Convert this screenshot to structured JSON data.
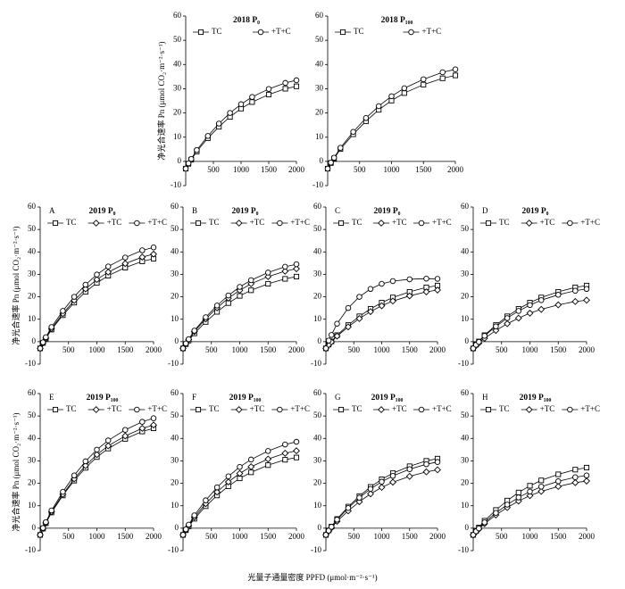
{
  "xlabel": "光量子通量密度 PPFD (μmol·m⁻²·s⁻¹)",
  "chart_data": [
    {
      "type": "line",
      "title": "2018 P₀",
      "ylabel": "净光合速率 Pn (μmol CO₂·m⁻²·s⁻¹)",
      "legend": "top",
      "x": [
        0,
        50,
        100,
        200,
        400,
        600,
        800,
        1000,
        1200,
        1500,
        1800,
        2000
      ],
      "xlim": [
        0,
        2000
      ],
      "ylim": [
        -10,
        60
      ],
      "xticks": [
        500,
        1000,
        1500,
        2000
      ],
      "yticks": [
        -10,
        0,
        10,
        20,
        30,
        40,
        50,
        60
      ],
      "series": [
        {
          "name": "TC",
          "marker": "square",
          "color": "#000000",
          "values": [
            -3,
            -1.0,
            0.7,
            4.1,
            9.6,
            14.3,
            18.4,
            21.8,
            24.5,
            27.6,
            30.0,
            31
          ]
        },
        {
          "name": "+T+C",
          "marker": "circle",
          "color": "#000000",
          "values": [
            -3,
            -0.8,
            1.0,
            4.7,
            10.5,
            15.6,
            20.0,
            23.6,
            26.6,
            29.9,
            32.4,
            33.5
          ]
        }
      ]
    },
    {
      "type": "line",
      "title": "2018 P₁₀₀",
      "legend": "top",
      "x": [
        0,
        50,
        100,
        200,
        400,
        600,
        800,
        1000,
        1200,
        1500,
        1800,
        2000
      ],
      "xlim": [
        0,
        2000
      ],
      "ylim": [
        -10,
        60
      ],
      "xticks": [
        500,
        1000,
        1500,
        2000
      ],
      "yticks": [
        -10,
        0,
        10,
        20,
        30,
        40,
        50,
        60
      ],
      "series": [
        {
          "name": "TC",
          "marker": "square",
          "color": "#000000",
          "values": [
            -3,
            -0.7,
            1.2,
            5.1,
            11.2,
            16.6,
            21.3,
            25.1,
            28.2,
            31.7,
            34.3,
            35.5
          ]
        },
        {
          "name": "+T+C",
          "marker": "circle",
          "color": "#000000",
          "values": [
            -3,
            -0.5,
            1.5,
            5.6,
            12.2,
            17.9,
            22.8,
            26.9,
            30.2,
            33.9,
            36.8,
            38
          ]
        }
      ]
    },
    {
      "type": "line",
      "label": "A",
      "title": "2019 P₀",
      "ylabel": "净光合速率 Pn (μmol CO₂·m⁻²·s⁻¹)",
      "legend": "top",
      "x": [
        0,
        50,
        100,
        200,
        400,
        600,
        800,
        1000,
        1200,
        1500,
        1800,
        2000
      ],
      "xlim": [
        0,
        2000
      ],
      "ylim": [
        -10,
        60
      ],
      "xticks": [
        500,
        1000,
        1500,
        2000
      ],
      "yticks": [
        -10,
        0,
        10,
        20,
        30,
        40,
        50,
        60
      ],
      "series": [
        {
          "name": "TC",
          "marker": "square",
          "color": "#000000",
          "values": [
            -3,
            -0.6,
            1.4,
            5.4,
            11.8,
            17.4,
            22.2,
            26.2,
            29.4,
            33.0,
            35.8,
            37
          ]
        },
        {
          "name": "+TC",
          "marker": "diamond",
          "color": "#000000",
          "values": [
            -3,
            -0.5,
            1.6,
            5.8,
            12.5,
            18.4,
            23.5,
            27.7,
            31.0,
            34.8,
            37.7,
            39
          ]
        },
        {
          "name": "+T+C",
          "marker": "circle",
          "color": "#000000",
          "values": [
            -3,
            -0.3,
            2.0,
            6.5,
            13.7,
            20.0,
            25.4,
            29.9,
            33.5,
            37.5,
            40.7,
            42
          ]
        }
      ]
    },
    {
      "type": "line",
      "label": "B",
      "title": "2019 P₀",
      "legend": "top",
      "x": [
        0,
        50,
        100,
        200,
        400,
        600,
        800,
        1000,
        1200,
        1500,
        1800,
        2000
      ],
      "xlim": [
        0,
        2000
      ],
      "ylim": [
        -10,
        60
      ],
      "xticks": [
        500,
        1000,
        1500,
        2000
      ],
      "yticks": [
        -10,
        0,
        10,
        20,
        30,
        40,
        50,
        60
      ],
      "series": [
        {
          "name": "TC",
          "marker": "square",
          "color": "#000000",
          "values": [
            -3,
            -1.1,
            0.5,
            3.7,
            8.8,
            13.3,
            17.2,
            20.4,
            22.9,
            25.8,
            28.0,
            29
          ]
        },
        {
          "name": "+TC",
          "marker": "diamond",
          "color": "#000000",
          "values": [
            -3,
            -0.9,
            0.9,
            4.5,
            10.1,
            15.1,
            19.4,
            22.9,
            25.8,
            29.0,
            31.4,
            32.5
          ]
        },
        {
          "name": "+T+C",
          "marker": "circle",
          "color": "#000000",
          "values": [
            -3,
            -0.8,
            1.1,
            4.9,
            10.9,
            16.1,
            20.6,
            24.4,
            27.4,
            30.8,
            33.4,
            34.5
          ]
        }
      ]
    },
    {
      "type": "line",
      "label": "C",
      "title": "2019 P₀",
      "legend": "top",
      "x": [
        0,
        50,
        100,
        200,
        400,
        600,
        800,
        1000,
        1200,
        1500,
        1800,
        2000
      ],
      "xlim": [
        0,
        2000
      ],
      "ylim": [
        -10,
        60
      ],
      "xticks": [
        500,
        1000,
        1500,
        2000
      ],
      "yticks": [
        -10,
        0,
        10,
        20,
        30,
        40,
        50,
        60
      ],
      "series": [
        {
          "name": "TC",
          "marker": "square",
          "color": "#000000",
          "values": [
            -3,
            -1.3,
            0.1,
            2.9,
            7.4,
            11.3,
            14.6,
            17.4,
            19.7,
            22.2,
            24.2,
            25
          ]
        },
        {
          "name": "+TC",
          "marker": "diamond",
          "color": "#000000",
          "values": [
            -3,
            -1.4,
            -0.1,
            2.5,
            6.6,
            10.3,
            13.4,
            16.0,
            18.1,
            20.4,
            22.2,
            23
          ]
        },
        {
          "name": "+T+C",
          "marker": "circle",
          "color": "#000000",
          "values": [
            -3,
            0.5,
            3.0,
            8.0,
            15.0,
            20.0,
            23.5,
            25.8,
            27.0,
            27.8,
            28.1,
            28
          ]
        }
      ]
    },
    {
      "type": "line",
      "label": "D",
      "title": "2019 P₀",
      "legend": "top",
      "x": [
        0,
        50,
        100,
        200,
        400,
        600,
        800,
        1000,
        1200,
        1500,
        1800,
        2000
      ],
      "xlim": [
        0,
        2000
      ],
      "ylim": [
        -10,
        60
      ],
      "xticks": [
        500,
        1000,
        1500,
        2000
      ],
      "yticks": [
        -10,
        0,
        10,
        20,
        30,
        40,
        50,
        60
      ],
      "series": [
        {
          "name": "TC",
          "marker": "square",
          "color": "#000000",
          "values": [
            -3,
            -1.3,
            0.1,
            2.9,
            7.4,
            11.3,
            14.6,
            17.4,
            19.7,
            22.2,
            24.2,
            25
          ]
        },
        {
          "name": "+TC",
          "marker": "diamond",
          "color": "#000000",
          "values": [
            -3,
            -1.7,
            -0.6,
            1.5,
            5.0,
            8.0,
            10.5,
            12.7,
            14.4,
            16.4,
            17.9,
            18.5
          ]
        },
        {
          "name": "+T+C",
          "marker": "circle",
          "color": "#000000",
          "values": [
            -3,
            -1.4,
            -0.1,
            2.6,
            6.8,
            10.5,
            13.7,
            16.3,
            18.5,
            20.9,
            22.7,
            23.5
          ]
        }
      ]
    },
    {
      "type": "line",
      "label": "E",
      "title": "2019 P₁₀₀",
      "ylabel": "净光合速率 Pn (μmol CO₂·m⁻²·s⁻¹)",
      "legend": "top",
      "x": [
        0,
        50,
        100,
        200,
        400,
        600,
        800,
        1000,
        1200,
        1500,
        1800,
        2000
      ],
      "xlim": [
        0,
        2000
      ],
      "ylim": [
        -10,
        60
      ],
      "xticks": [
        500,
        1000,
        1500,
        2000
      ],
      "yticks": [
        -10,
        0,
        10,
        20,
        30,
        40,
        50,
        60
      ],
      "series": [
        {
          "name": "TC",
          "marker": "square",
          "color": "#000000",
          "values": [
            -3,
            -0.2,
            2.2,
            7.0,
            14.6,
            21.2,
            26.9,
            31.7,
            35.5,
            39.8,
            43.1,
            44.5
          ]
        },
        {
          "name": "+TC",
          "marker": "diamond",
          "color": "#000000",
          "values": [
            -3,
            -0.1,
            2.4,
            7.3,
            15.1,
            22.0,
            27.9,
            32.8,
            36.7,
            41.1,
            44.5,
            46
          ]
        },
        {
          "name": "+T+C",
          "marker": "circle",
          "color": "#000000",
          "values": [
            -3,
            0.1,
            2.7,
            7.9,
            16.2,
            23.5,
            29.8,
            35.0,
            39.1,
            43.8,
            47.4,
            49
          ]
        }
      ]
    },
    {
      "type": "line",
      "label": "F",
      "title": "2019 P₁₀₀",
      "legend": "top",
      "x": [
        0,
        50,
        100,
        200,
        400,
        600,
        800,
        1000,
        1200,
        1500,
        1800,
        2000
      ],
      "xlim": [
        0,
        2000
      ],
      "ylim": [
        -10,
        60
      ],
      "xticks": [
        500,
        1000,
        1500,
        2000
      ],
      "yticks": [
        -10,
        0,
        10,
        20,
        30,
        40,
        50,
        60
      ],
      "series": [
        {
          "name": "TC",
          "marker": "square",
          "color": "#000000",
          "values": [
            -3,
            -0.9,
            0.8,
            4.2,
            9.8,
            14.6,
            18.7,
            22.2,
            24.9,
            28.1,
            30.5,
            31.5
          ]
        },
        {
          "name": "+TC",
          "marker": "diamond",
          "color": "#000000",
          "values": [
            -3,
            -0.8,
            1.1,
            4.9,
            10.9,
            16.1,
            20.6,
            24.4,
            27.4,
            30.8,
            33.4,
            34.5
          ]
        },
        {
          "name": "+T+C",
          "marker": "circle",
          "color": "#000000",
          "values": [
            -3,
            -0.5,
            1.6,
            5.7,
            12.4,
            18.2,
            23.1,
            27.3,
            30.6,
            34.4,
            37.3,
            38.5
          ]
        }
      ]
    },
    {
      "type": "line",
      "label": "G",
      "title": "2019 P₁₀₀",
      "legend": "top",
      "x": [
        0,
        50,
        100,
        200,
        400,
        600,
        800,
        1000,
        1200,
        1500,
        1800,
        2000
      ],
      "xlim": [
        0,
        2000
      ],
      "ylim": [
        -10,
        60
      ],
      "xticks": [
        500,
        1000,
        1500,
        2000
      ],
      "yticks": [
        -10,
        0,
        10,
        20,
        30,
        40,
        50,
        60
      ],
      "series": [
        {
          "name": "TC",
          "marker": "square",
          "color": "#000000",
          "values": [
            -3,
            -1.0,
            0.7,
            4.1,
            9.6,
            14.3,
            18.4,
            21.8,
            24.5,
            27.6,
            30.0,
            31
          ]
        },
        {
          "name": "+TC",
          "marker": "diamond",
          "color": "#000000",
          "values": [
            -3,
            -1.3,
            0.2,
            3.1,
            7.7,
            11.8,
            15.3,
            18.2,
            20.5,
            23.1,
            25.1,
            26
          ]
        },
        {
          "name": "+T+C",
          "marker": "circle",
          "color": "#000000",
          "values": [
            -3,
            -1.1,
            0.6,
            3.8,
            9.0,
            13.6,
            17.5,
            20.7,
            23.3,
            26.3,
            28.5,
            29.5
          ]
        }
      ]
    },
    {
      "type": "line",
      "label": "H",
      "title": "2019 P₁₀₀",
      "legend": "top",
      "x": [
        0,
        50,
        100,
        200,
        400,
        600,
        800,
        1000,
        1200,
        1500,
        1800,
        2000
      ],
      "xlim": [
        0,
        2000
      ],
      "ylim": [
        -10,
        60
      ],
      "xticks": [
        500,
        1000,
        1500,
        2000
      ],
      "yticks": [
        -10,
        0,
        10,
        20,
        30,
        40,
        50,
        60
      ],
      "series": [
        {
          "name": "TC",
          "marker": "square",
          "color": "#000000",
          "values": [
            -3,
            -1.2,
            0.3,
            3.3,
            8.1,
            12.3,
            15.9,
            18.9,
            21.3,
            24.0,
            26.1,
            27
          ]
        },
        {
          "name": "+TC",
          "marker": "diamond",
          "color": "#000000",
          "values": [
            -3,
            -1.6,
            -0.4,
            2.0,
            5.9,
            9.2,
            12.1,
            14.5,
            16.4,
            18.6,
            20.3,
            21
          ]
        },
        {
          "name": "+T+C",
          "marker": "circle",
          "color": "#000000",
          "values": [
            -3,
            -1.4,
            -0.1,
            2.6,
            6.8,
            10.5,
            13.7,
            16.3,
            18.5,
            20.9,
            22.7,
            23.5
          ]
        }
      ]
    }
  ]
}
